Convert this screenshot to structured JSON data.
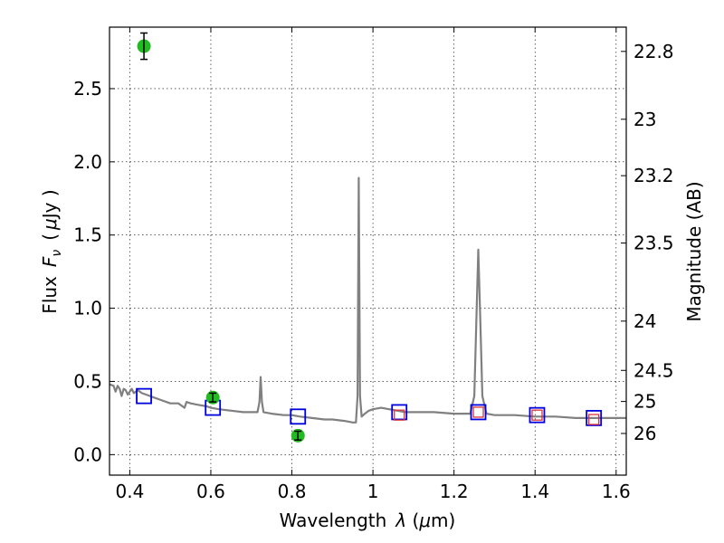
{
  "chart_data": {
    "type": "scatter",
    "xlabel": "Wavelength",
    "xlabel_symbol": "λ",
    "xlabel_unit_open": " (",
    "xlabel_unit_mu": "μ",
    "xlabel_unit_rest": "m)",
    "ylabel": "Flux",
    "ylabel_symbol": "F",
    "ylabel_sub": "ν",
    "ylabel_unit_open": "(",
    "ylabel_unit_mu": "μ",
    "ylabel_unit_rest": "Jy )",
    "y2label": "Magnitude (AB)",
    "xlim": [
      0.35,
      1.625
    ],
    "ylim": [
      -0.14,
      2.92
    ],
    "x_ticks": [
      0.4,
      0.6,
      0.8,
      1.0,
      1.2,
      1.4,
      1.6
    ],
    "x_tick_labels": [
      "0.4",
      "0.6",
      "0.8",
      "1",
      "1.2",
      "1.4",
      "1.6"
    ],
    "y_ticks": [
      0.0,
      0.5,
      1.0,
      1.5,
      2.0,
      2.5
    ],
    "y_tick_labels": [
      "0.0",
      "0.5",
      "1.0",
      "1.5",
      "2.0",
      "2.5"
    ],
    "y2_ticks": [
      22.8,
      23,
      23.2,
      23.5,
      24,
      24.5,
      25,
      26
    ],
    "y2_tick_labels": [
      "22.8",
      "23",
      "23.2",
      "23.5",
      "24",
      "24.5",
      "25",
      "26"
    ],
    "grid": true,
    "colors": {
      "spectrum": "#808080",
      "observed": "#22bb22",
      "model_blue": "#0000dd",
      "model_red": "#dd3333",
      "axis": "#000000"
    },
    "spectrum": {
      "name": "",
      "x": [
        0.35,
        0.36,
        0.365,
        0.37,
        0.375,
        0.38,
        0.385,
        0.39,
        0.395,
        0.4,
        0.405,
        0.41,
        0.415,
        0.42,
        0.43,
        0.44,
        0.45,
        0.46,
        0.47,
        0.48,
        0.5,
        0.52,
        0.535,
        0.54,
        0.55,
        0.57,
        0.59,
        0.6,
        0.62,
        0.65,
        0.68,
        0.7,
        0.715,
        0.72,
        0.723,
        0.726,
        0.73,
        0.75,
        0.78,
        0.8,
        0.82,
        0.85,
        0.88,
        0.9,
        0.93,
        0.95,
        0.958,
        0.962,
        0.965,
        0.968,
        0.972,
        0.98,
        0.99,
        1.0,
        1.02,
        1.04,
        1.06,
        1.08,
        1.1,
        1.15,
        1.2,
        1.24,
        1.25,
        1.255,
        1.26,
        1.265,
        1.27,
        1.28,
        1.3,
        1.35,
        1.4,
        1.45,
        1.5,
        1.55,
        1.6,
        1.625
      ],
      "y": [
        0.48,
        0.47,
        0.43,
        0.47,
        0.45,
        0.4,
        0.45,
        0.44,
        0.41,
        0.43,
        0.45,
        0.42,
        0.43,
        0.44,
        0.42,
        0.41,
        0.4,
        0.39,
        0.38,
        0.37,
        0.35,
        0.35,
        0.32,
        0.36,
        0.35,
        0.34,
        0.33,
        0.32,
        0.31,
        0.3,
        0.29,
        0.29,
        0.29,
        0.36,
        0.53,
        0.36,
        0.29,
        0.28,
        0.27,
        0.27,
        0.26,
        0.25,
        0.24,
        0.24,
        0.23,
        0.22,
        0.22,
        0.4,
        1.89,
        0.4,
        0.26,
        0.28,
        0.3,
        0.31,
        0.32,
        0.31,
        0.3,
        0.29,
        0.29,
        0.29,
        0.28,
        0.28,
        0.4,
        0.9,
        1.4,
        0.9,
        0.4,
        0.28,
        0.27,
        0.27,
        0.26,
        0.26,
        0.25,
        0.25,
        0.25,
        0.25
      ]
    },
    "observed": {
      "name": "",
      "x": [
        0.435,
        0.605,
        0.815
      ],
      "y": [
        2.79,
        0.39,
        0.13
      ],
      "yerr": [
        0.09,
        0.03,
        0.03
      ]
    },
    "model_blue": {
      "name": "",
      "x": [
        0.435,
        0.605,
        0.815,
        1.065,
        1.26,
        1.405,
        1.545
      ],
      "y": [
        0.4,
        0.32,
        0.26,
        0.29,
        0.29,
        0.27,
        0.25
      ]
    },
    "model_red": {
      "name": "",
      "x": [
        1.065,
        1.26,
        1.405,
        1.545
      ],
      "y": [
        0.27,
        0.29,
        0.27,
        0.24
      ]
    }
  }
}
